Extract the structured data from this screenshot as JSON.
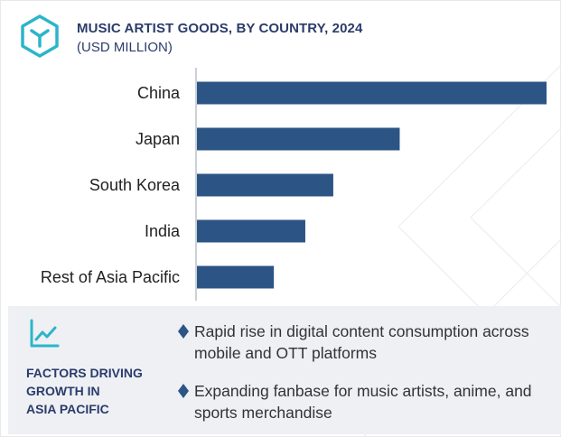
{
  "header": {
    "title": "MUSIC ARTIST GOODS, BY COUNTRY, 2024",
    "subtitle": "(USD MILLION)"
  },
  "colors": {
    "bar": "#2c5585",
    "title": "#2b3c6b",
    "accent": "#2bb5c9",
    "panel_bg": "#eef0f4"
  },
  "chart_data": {
    "type": "bar",
    "orientation": "horizontal",
    "title": "MUSIC ARTIST GOODS, BY COUNTRY, 2024",
    "subtitle": "(USD MILLION)",
    "categories": [
      "China",
      "Japan",
      "South Korea",
      "India",
      "Rest of Asia Pacific"
    ],
    "values": [
      100,
      58,
      39,
      31,
      22
    ],
    "xlim": [
      0,
      100
    ],
    "grid": false,
    "legend": "none",
    "value_axis_shown": false
  },
  "panel": {
    "icon": "trend-up-icon",
    "title": "FACTORS DRIVING\nGROWTH IN\nASIA PACIFIC",
    "bullets": [
      "Rapid rise in digital content consumption across mobile and OTT platforms",
      "Expanding fanbase for music artists, anime, and sports merchandise"
    ]
  }
}
